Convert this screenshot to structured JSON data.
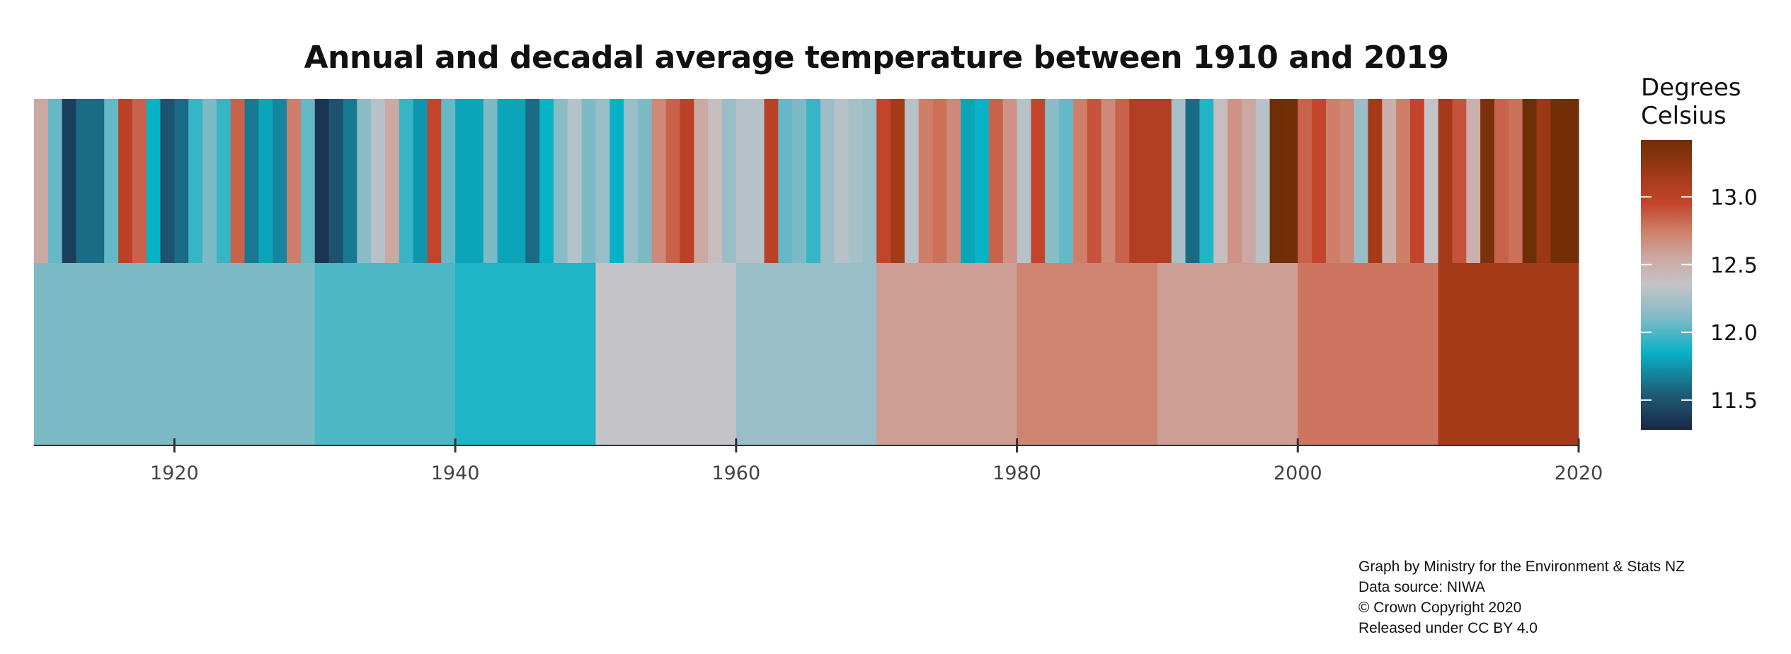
{
  "chart_data": {
    "type": "heatmap",
    "title": "Annual and decadal average temperature between 1910 and 2019",
    "xlabel": "",
    "ylabel": "",
    "xlim": [
      1910,
      2020
    ],
    "x_ticks": [
      "1920",
      "1940",
      "1960",
      "1980",
      "2000",
      "2020"
    ],
    "grid": false,
    "legend": {
      "title_lines": [
        "Degrees",
        "Celsius"
      ],
      "position": "right",
      "range": [
        11.28,
        13.42
      ],
      "ticks": [
        "11.5",
        "12.0",
        "12.5",
        "13.0"
      ]
    },
    "colorscale": [
      {
        "value": 11.28,
        "color": "#1a2747"
      },
      {
        "value": 11.55,
        "color": "#1e5d78"
      },
      {
        "value": 11.85,
        "color": "#08b2c6"
      },
      {
        "value": 12.1,
        "color": "#7cbac6"
      },
      {
        "value": 12.35,
        "color": "#c4c4c8"
      },
      {
        "value": 12.55,
        "color": "#cca8a2"
      },
      {
        "value": 12.75,
        "color": "#cf7e6a"
      },
      {
        "value": 12.95,
        "color": "#c2452b"
      },
      {
        "value": 13.15,
        "color": "#a53a19"
      },
      {
        "value": 13.42,
        "color": "#6e2e06"
      }
    ],
    "annual": {
      "start_year": 1910,
      "values": [
        12.55,
        12.05,
        11.4,
        11.6,
        11.6,
        12.05,
        13.0,
        12.85,
        11.85,
        11.5,
        11.6,
        11.95,
        12.1,
        11.95,
        12.85,
        11.65,
        11.8,
        11.7,
        12.75,
        12.05,
        11.35,
        11.5,
        11.65,
        12.15,
        12.3,
        12.55,
        11.95,
        11.75,
        12.95,
        12.05,
        11.8,
        11.8,
        12.1,
        11.8,
        11.8,
        11.6,
        11.85,
        12.15,
        12.3,
        12.1,
        12.2,
        11.85,
        12.2,
        12.1,
        12.7,
        12.85,
        13.0,
        12.55,
        12.4,
        12.2,
        12.3,
        12.3,
        13.0,
        12.05,
        12.1,
        11.95,
        12.2,
        12.3,
        12.25,
        12.2,
        12.95,
        13.15,
        12.3,
        12.75,
        12.8,
        12.7,
        11.8,
        11.85,
        12.85,
        12.65,
        12.3,
        12.95,
        12.15,
        12.05,
        12.75,
        12.9,
        12.7,
        12.85,
        13.05,
        13.05,
        13.05,
        12.25,
        11.6,
        11.9,
        12.4,
        12.65,
        12.55,
        12.3,
        13.45,
        13.4,
        12.85,
        12.95,
        12.75,
        12.7,
        12.2,
        13.15,
        12.5,
        12.75,
        12.95,
        12.35,
        13.15,
        12.9,
        12.5,
        13.35,
        12.85,
        12.8,
        13.45,
        13.2,
        13.4,
        13.4
      ]
    },
    "decadal": {
      "decades": [
        1910,
        1920,
        1930,
        1940,
        1950,
        1960,
        1970,
        1980,
        1990,
        2000,
        2010
      ],
      "values": [
        12.1,
        12.1,
        12.0,
        11.9,
        12.35,
        12.2,
        12.6,
        12.72,
        12.6,
        12.78,
        13.15
      ]
    }
  },
  "credits": [
    "Graph by Ministry for the Environment & Stats NZ",
    "Data source: NIWA",
    "© Crown Copyright 2020",
    "Released under CC BY 4.0"
  ]
}
